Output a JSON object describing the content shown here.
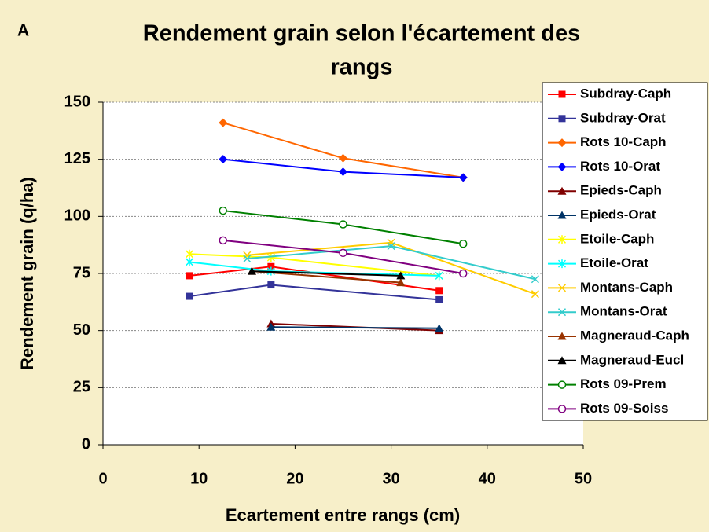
{
  "chart_data": {
    "type": "line",
    "label": "A",
    "title": [
      "Rendement grain selon l'écartement des",
      "rangs"
    ],
    "x_label": "Ecartement entre rangs (cm)",
    "y_label": "Rendement grain (q/ha)",
    "xlim": [
      0,
      50
    ],
    "xticks": [
      0,
      10,
      20,
      30,
      40,
      50
    ],
    "ylim": [
      0,
      150
    ],
    "yticks": [
      0,
      25,
      50,
      75,
      100,
      125,
      150
    ],
    "grid": true,
    "legend": "right",
    "series": [
      {
        "name": "Subdray-Caph",
        "color": "#ff0000",
        "marker": "square",
        "x": [
          9,
          17.5,
          35
        ],
        "values": [
          74,
          78,
          67.5
        ]
      },
      {
        "name": "Subdray-Orat",
        "color": "#333399",
        "marker": "square",
        "x": [
          9,
          17.5,
          35
        ],
        "values": [
          65,
          70,
          63.5
        ]
      },
      {
        "name": "Rots 10-Caph",
        "color": "#ff6600",
        "marker": "diamond",
        "x": [
          12.5,
          25,
          37.5
        ],
        "values": [
          141,
          125.5,
          117
        ]
      },
      {
        "name": "Rots 10-Orat",
        "color": "#0000ff",
        "marker": "diamond",
        "x": [
          12.5,
          25,
          37.5
        ],
        "values": [
          125,
          119.5,
          117
        ]
      },
      {
        "name": "Epieds-Caph",
        "color": "#800000",
        "marker": "triangle",
        "x": [
          17.5,
          35
        ],
        "values": [
          53,
          50
        ]
      },
      {
        "name": "Epieds-Orat",
        "color": "#003366",
        "marker": "triangle",
        "x": [
          17.5,
          35
        ],
        "values": [
          51.5,
          51
        ]
      },
      {
        "name": "Etoile-Caph",
        "color": "#ffff00",
        "marker": "asterisk",
        "x": [
          9,
          17.5,
          35
        ],
        "values": [
          83.5,
          82,
          74
        ]
      },
      {
        "name": "Etoile-Orat",
        "color": "#00ffff",
        "marker": "asterisk",
        "x": [
          9,
          17.5,
          35
        ],
        "values": [
          80,
          76,
          74
        ]
      },
      {
        "name": "Montans-Caph",
        "color": "#ffcc00",
        "marker": "cross",
        "x": [
          15,
          30,
          45
        ],
        "values": [
          83,
          88.5,
          66
        ]
      },
      {
        "name": "Montans-Orat",
        "color": "#33cccc",
        "marker": "cross",
        "x": [
          15,
          30,
          45
        ],
        "values": [
          81.5,
          87,
          72.5
        ]
      },
      {
        "name": "Magneraud-Caph",
        "color": "#993300",
        "marker": "triangle",
        "x": [
          15.5,
          31
        ],
        "values": [
          76,
          71
        ]
      },
      {
        "name": "Magneraud-Eucl",
        "color": "#000000",
        "marker": "triangle",
        "x": [
          15.5,
          31
        ],
        "values": [
          76,
          74
        ]
      },
      {
        "name": "Rots 09-Prem",
        "color": "#008000",
        "marker": "circle",
        "x": [
          12.5,
          25,
          37.5
        ],
        "values": [
          102.5,
          96.5,
          88
        ]
      },
      {
        "name": "Rots 09-Soiss",
        "color": "#800080",
        "marker": "circle",
        "x": [
          12.5,
          25,
          37.5
        ],
        "values": [
          89.5,
          84,
          75
        ]
      }
    ]
  }
}
